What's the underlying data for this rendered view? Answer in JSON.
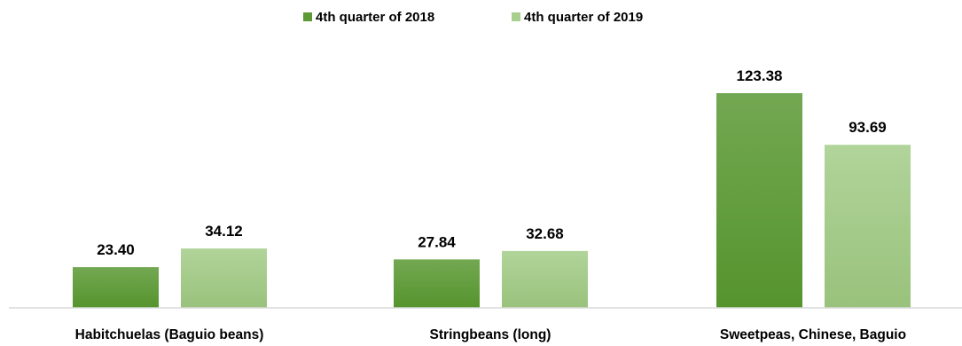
{
  "chart_data": {
    "type": "bar",
    "title": "",
    "xlabel": "",
    "ylabel": "",
    "categories": [
      "Habitchuelas (Baguio beans)",
      "Stringbeans (long)",
      "Sweetpeas, Chinese, Baguio"
    ],
    "series": [
      {
        "name": "4th quarter of 2018",
        "values": [
          23.4,
          27.84,
          123.38
        ],
        "labels": [
          "23.40",
          "27.84",
          "123.38"
        ],
        "color": "#5e9a34"
      },
      {
        "name": "4th quarter of 2019",
        "values": [
          34.12,
          32.68,
          93.69
        ],
        "labels": [
          "34.12",
          "32.68",
          "93.69"
        ],
        "color": "#a9cf8e"
      }
    ],
    "ylim": [
      0,
      130
    ],
    "grid": false,
    "legend": "top-center",
    "data_labels": true
  }
}
